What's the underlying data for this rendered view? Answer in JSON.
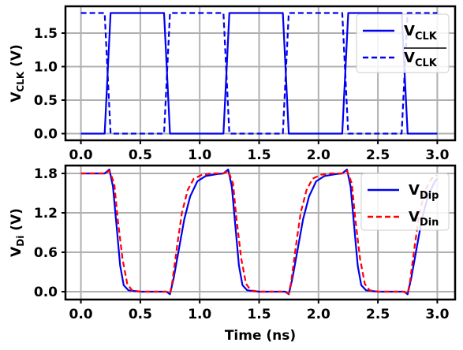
{
  "chart_data": [
    {
      "type": "line",
      "xlabel": "",
      "ylabel": "V_CLK (V)",
      "ylabel_main": "V",
      "ylabel_sub": "CLK",
      "ylabel_unit": " (V)",
      "xlim": [
        -0.13,
        3.15
      ],
      "ylim": [
        -0.1,
        1.9
      ],
      "xticks": [
        0.0,
        0.5,
        1.0,
        1.5,
        2.0,
        2.5,
        3.0
      ],
      "xtick_labels": [
        "0.0",
        "0.5",
        "1.0",
        "1.5",
        "2.0",
        "2.5",
        "3.0"
      ],
      "yticks": [
        0.0,
        0.5,
        1.0,
        1.5
      ],
      "ytick_labels": [
        "0.0",
        "0.5",
        "1.0",
        "1.5"
      ],
      "grid": true,
      "legend_position": "top-right",
      "series": [
        {
          "name": "V_CLK",
          "label_main": "V",
          "label_sub": "CLK",
          "overline": false,
          "color": "#0000ee",
          "dash": "solid",
          "points": [
            [
              0,
              0
            ],
            [
              0.2,
              0
            ],
            [
              0.25,
              1.8
            ],
            [
              0.7,
              1.8
            ],
            [
              0.75,
              0
            ],
            [
              1.2,
              0
            ],
            [
              1.25,
              1.8
            ],
            [
              1.7,
              1.8
            ],
            [
              1.75,
              0
            ],
            [
              2.2,
              0
            ],
            [
              2.25,
              1.8
            ],
            [
              2.7,
              1.8
            ],
            [
              2.75,
              0
            ],
            [
              3.0,
              0
            ]
          ]
        },
        {
          "name": "V_CLK (complement)",
          "label_main": "V",
          "label_sub": "CLK",
          "overline": true,
          "color": "#0000ee",
          "dash": "dashed",
          "points": [
            [
              0,
              1.8
            ],
            [
              0.2,
              1.8
            ],
            [
              0.25,
              0
            ],
            [
              0.7,
              0
            ],
            [
              0.75,
              1.8
            ],
            [
              1.2,
              1.8
            ],
            [
              1.25,
              0
            ],
            [
              1.7,
              0
            ],
            [
              1.75,
              1.8
            ],
            [
              2.2,
              1.8
            ],
            [
              2.25,
              0
            ],
            [
              2.7,
              0
            ],
            [
              2.75,
              1.8
            ],
            [
              3.0,
              1.8
            ]
          ]
        }
      ]
    },
    {
      "type": "line",
      "xlabel": "Time (ns)",
      "ylabel": "V_Di (V)",
      "ylabel_main": "V",
      "ylabel_sub": "Di",
      "ylabel_unit": " (V)",
      "xlim": [
        -0.13,
        3.15
      ],
      "ylim": [
        -0.12,
        1.92
      ],
      "xticks": [
        0.0,
        0.5,
        1.0,
        1.5,
        2.0,
        2.5,
        3.0
      ],
      "xtick_labels": [
        "0.0",
        "0.5",
        "1.0",
        "1.5",
        "2.0",
        "2.5",
        "3.0"
      ],
      "yticks": [
        0.0,
        0.6,
        1.2,
        1.8
      ],
      "ytick_labels": [
        "0.0",
        "0.6",
        "1.2",
        "1.8"
      ],
      "grid": true,
      "legend_position": "top-right",
      "series": [
        {
          "name": "V_Dip",
          "label_main": "V",
          "label_sub": "Dip",
          "overline": false,
          "color": "#0000ee",
          "dash": "solid",
          "points": [
            [
              0,
              1.8
            ],
            [
              0.2,
              1.8
            ],
            [
              0.24,
              1.86
            ],
            [
              0.27,
              1.6
            ],
            [
              0.3,
              1.0
            ],
            [
              0.33,
              0.4
            ],
            [
              0.36,
              0.1
            ],
            [
              0.4,
              0.02
            ],
            [
              0.5,
              0.0
            ],
            [
              0.72,
              0.0
            ],
            [
              0.75,
              -0.04
            ],
            [
              0.78,
              0.2
            ],
            [
              0.82,
              0.6
            ],
            [
              0.87,
              1.1
            ],
            [
              0.92,
              1.45
            ],
            [
              0.98,
              1.68
            ],
            [
              1.05,
              1.76
            ],
            [
              1.15,
              1.79
            ],
            [
              1.2,
              1.8
            ],
            [
              1.24,
              1.86
            ],
            [
              1.27,
              1.6
            ],
            [
              1.3,
              1.0
            ],
            [
              1.33,
              0.4
            ],
            [
              1.36,
              0.1
            ],
            [
              1.4,
              0.02
            ],
            [
              1.5,
              0.0
            ],
            [
              1.72,
              0.0
            ],
            [
              1.75,
              -0.04
            ],
            [
              1.78,
              0.2
            ],
            [
              1.82,
              0.6
            ],
            [
              1.87,
              1.1
            ],
            [
              1.92,
              1.45
            ],
            [
              1.98,
              1.68
            ],
            [
              2.05,
              1.76
            ],
            [
              2.15,
              1.79
            ],
            [
              2.2,
              1.8
            ],
            [
              2.24,
              1.86
            ],
            [
              2.27,
              1.6
            ],
            [
              2.3,
              1.0
            ],
            [
              2.33,
              0.4
            ],
            [
              2.36,
              0.1
            ],
            [
              2.4,
              0.02
            ],
            [
              2.5,
              0.0
            ],
            [
              2.72,
              0.0
            ],
            [
              2.75,
              -0.04
            ],
            [
              2.78,
              0.2
            ],
            [
              2.82,
              0.6
            ],
            [
              2.87,
              1.1
            ],
            [
              2.92,
              1.45
            ],
            [
              2.98,
              1.68
            ],
            [
              3.0,
              1.72
            ]
          ]
        },
        {
          "name": "V_Din",
          "label_main": "V",
          "label_sub": "Din",
          "overline": false,
          "color": "#ff0000",
          "dash": "dashed",
          "points": [
            [
              0,
              1.8
            ],
            [
              0.2,
              1.8
            ],
            [
              0.24,
              1.84
            ],
            [
              0.28,
              1.65
            ],
            [
              0.31,
              1.1
            ],
            [
              0.35,
              0.5
            ],
            [
              0.39,
              0.12
            ],
            [
              0.43,
              0.02
            ],
            [
              0.5,
              0.0
            ],
            [
              0.72,
              0.0
            ],
            [
              0.75,
              -0.03
            ],
            [
              0.77,
              0.15
            ],
            [
              0.81,
              0.7
            ],
            [
              0.85,
              1.2
            ],
            [
              0.9,
              1.55
            ],
            [
              0.95,
              1.72
            ],
            [
              1.02,
              1.78
            ],
            [
              1.1,
              1.8
            ],
            [
              1.2,
              1.8
            ],
            [
              1.24,
              1.84
            ],
            [
              1.28,
              1.65
            ],
            [
              1.31,
              1.1
            ],
            [
              1.35,
              0.5
            ],
            [
              1.39,
              0.12
            ],
            [
              1.43,
              0.02
            ],
            [
              1.5,
              0.0
            ],
            [
              1.72,
              0.0
            ],
            [
              1.75,
              -0.03
            ],
            [
              1.77,
              0.15
            ],
            [
              1.81,
              0.7
            ],
            [
              1.85,
              1.2
            ],
            [
              1.9,
              1.55
            ],
            [
              1.95,
              1.72
            ],
            [
              2.02,
              1.78
            ],
            [
              2.1,
              1.8
            ],
            [
              2.2,
              1.8
            ],
            [
              2.24,
              1.84
            ],
            [
              2.28,
              1.65
            ],
            [
              2.31,
              1.1
            ],
            [
              2.35,
              0.5
            ],
            [
              2.39,
              0.12
            ],
            [
              2.43,
              0.02
            ],
            [
              2.5,
              0.0
            ],
            [
              2.72,
              0.0
            ],
            [
              2.75,
              -0.03
            ],
            [
              2.77,
              0.15
            ],
            [
              2.81,
              0.7
            ],
            [
              2.85,
              1.2
            ],
            [
              2.9,
              1.55
            ],
            [
              2.95,
              1.72
            ],
            [
              3.0,
              1.78
            ]
          ]
        }
      ]
    }
  ]
}
